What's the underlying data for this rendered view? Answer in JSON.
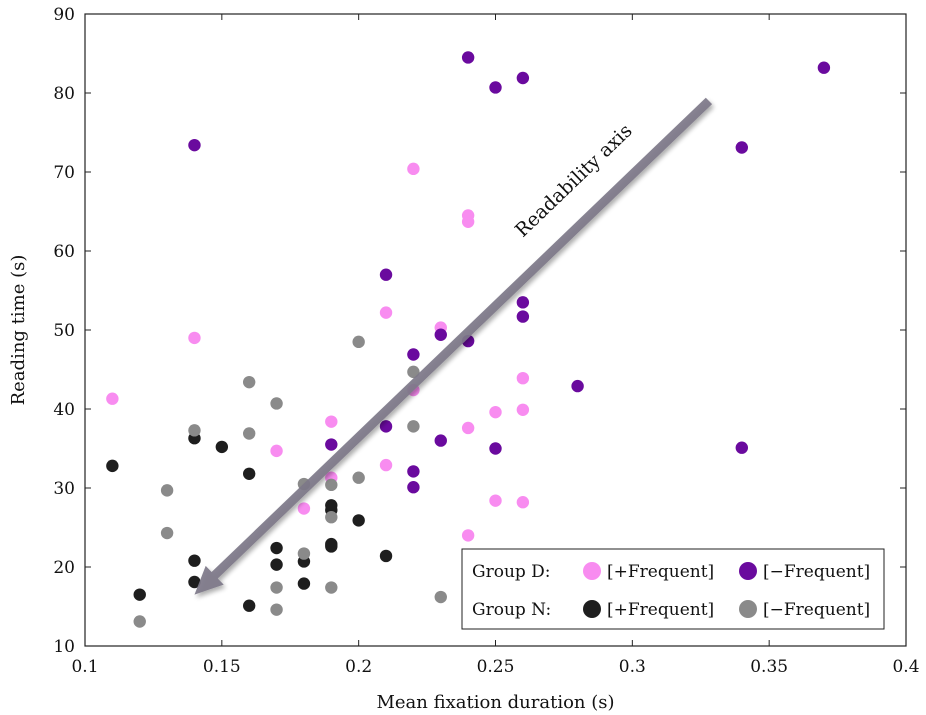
{
  "chart_data": {
    "type": "scatter",
    "xlabel": "Mean fixation duration (s)",
    "ylabel": "Reading time (s)",
    "xlim": [
      0.1,
      0.4
    ],
    "ylim": [
      10,
      90
    ],
    "xticks": [
      0.1,
      0.15,
      0.2,
      0.25,
      0.3,
      0.35,
      0.4
    ],
    "yticks": [
      10,
      20,
      30,
      40,
      50,
      60,
      70,
      80,
      90
    ],
    "xtick_labels": [
      "0.1",
      "0.15",
      "0.2",
      "0.25",
      "0.3",
      "0.35",
      "0.4"
    ],
    "ytick_labels": [
      "10",
      "20",
      "30",
      "40",
      "50",
      "60",
      "70",
      "80",
      "90"
    ],
    "grid": false,
    "legend_position": "bottom-right",
    "legend": {
      "rows": [
        {
          "group": "Group D:",
          "items": [
            "[+Frequent]",
            "[−Frequent]"
          ]
        },
        {
          "group": "Group N:",
          "items": [
            "[+Frequent]",
            "[−Frequent]"
          ]
        }
      ]
    },
    "annotation": {
      "text": "Readability axis",
      "arrow_from": [
        0.328,
        79
      ],
      "arrow_to": [
        0.14,
        16.5
      ],
      "color": "#7d7888"
    },
    "series": [
      {
        "color": "#f88cf0",
        "points": [
          [
            0.11,
            41.3
          ],
          [
            0.14,
            49.0
          ],
          [
            0.17,
            34.7
          ],
          [
            0.18,
            27.4
          ],
          [
            0.19,
            38.4
          ],
          [
            0.19,
            31.3
          ],
          [
            0.21,
            52.2
          ],
          [
            0.21,
            32.9
          ],
          [
            0.22,
            70.4
          ],
          [
            0.22,
            42.4
          ],
          [
            0.23,
            50.3
          ],
          [
            0.24,
            64.5
          ],
          [
            0.24,
            63.7
          ],
          [
            0.24,
            37.6
          ],
          [
            0.24,
            24.0
          ],
          [
            0.25,
            39.6
          ],
          [
            0.25,
            28.4
          ],
          [
            0.26,
            43.9
          ],
          [
            0.26,
            39.9
          ],
          [
            0.26,
            28.2
          ]
        ]
      },
      {
        "color": "#6a0a9e",
        "points": [
          [
            0.14,
            73.4
          ],
          [
            0.19,
            35.5
          ],
          [
            0.21,
            57.0
          ],
          [
            0.21,
            37.8
          ],
          [
            0.22,
            46.9
          ],
          [
            0.22,
            32.1
          ],
          [
            0.22,
            30.1
          ],
          [
            0.23,
            49.4
          ],
          [
            0.23,
            36.0
          ],
          [
            0.24,
            84.5
          ],
          [
            0.24,
            48.6
          ],
          [
            0.25,
            80.7
          ],
          [
            0.25,
            35.0
          ],
          [
            0.26,
            81.9
          ],
          [
            0.26,
            53.5
          ],
          [
            0.26,
            51.7
          ],
          [
            0.28,
            42.9
          ],
          [
            0.34,
            73.1
          ],
          [
            0.34,
            35.1
          ],
          [
            0.37,
            83.2
          ]
        ]
      },
      {
        "color": "#1e1e1e",
        "points": [
          [
            0.11,
            32.8
          ],
          [
            0.12,
            16.5
          ],
          [
            0.14,
            36.3
          ],
          [
            0.14,
            20.8
          ],
          [
            0.14,
            18.1
          ],
          [
            0.15,
            35.2
          ],
          [
            0.16,
            31.8
          ],
          [
            0.16,
            15.1
          ],
          [
            0.17,
            22.4
          ],
          [
            0.17,
            20.3
          ],
          [
            0.18,
            20.7
          ],
          [
            0.18,
            17.9
          ],
          [
            0.19,
            27.8
          ],
          [
            0.19,
            27.2
          ],
          [
            0.19,
            22.9
          ],
          [
            0.19,
            22.6
          ],
          [
            0.2,
            25.9
          ],
          [
            0.21,
            21.4
          ]
        ]
      },
      {
        "color": "#8a8a8a",
        "points": [
          [
            0.12,
            13.1
          ],
          [
            0.13,
            29.7
          ],
          [
            0.13,
            24.3
          ],
          [
            0.14,
            37.3
          ],
          [
            0.16,
            43.4
          ],
          [
            0.16,
            36.9
          ],
          [
            0.17,
            40.7
          ],
          [
            0.17,
            17.4
          ],
          [
            0.17,
            14.6
          ],
          [
            0.18,
            30.5
          ],
          [
            0.18,
            21.7
          ],
          [
            0.19,
            30.4
          ],
          [
            0.19,
            26.3
          ],
          [
            0.19,
            17.4
          ],
          [
            0.2,
            48.5
          ],
          [
            0.2,
            31.3
          ],
          [
            0.22,
            44.7
          ],
          [
            0.22,
            37.8
          ],
          [
            0.23,
            16.2
          ]
        ]
      }
    ]
  }
}
